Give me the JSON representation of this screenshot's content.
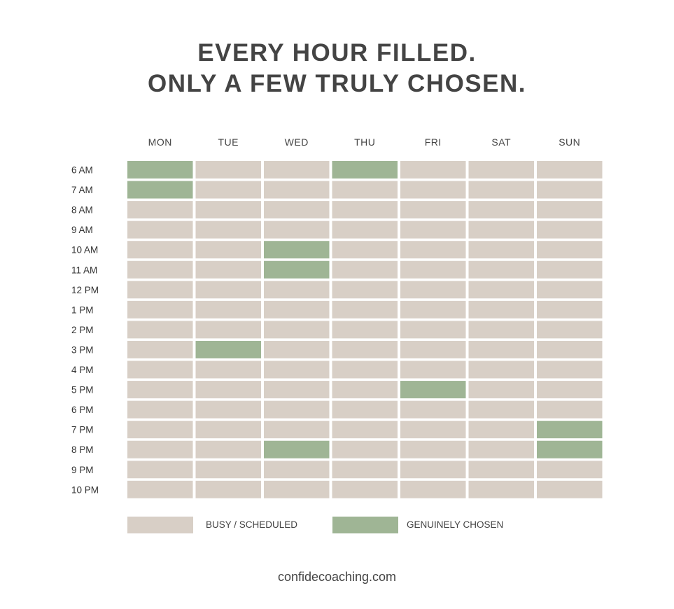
{
  "title_line1": "EVERY HOUR FILLED.",
  "title_line2": "ONLY A FEW TRULY CHOSEN.",
  "colors": {
    "busy": "#d8cfc6",
    "chosen": "#9fb595",
    "text": "#444444"
  },
  "chart_data": {
    "type": "heatmap",
    "days": [
      "MON",
      "TUE",
      "WED",
      "THU",
      "FRI",
      "SAT",
      "SUN"
    ],
    "hours": [
      "6 AM",
      "7 AM",
      "8 AM",
      "9 AM",
      "10 AM",
      "11 AM",
      "12 PM",
      "1 PM",
      "2 PM",
      "3 PM",
      "4 PM",
      "5 PM",
      "6 PM",
      "7 PM",
      "8 PM",
      "9 PM",
      "10 PM"
    ],
    "values": [
      [
        1,
        0,
        0,
        1,
        0,
        0,
        0
      ],
      [
        1,
        0,
        0,
        0,
        0,
        0,
        0
      ],
      [
        0,
        0,
        0,
        0,
        0,
        0,
        0
      ],
      [
        0,
        0,
        0,
        0,
        0,
        0,
        0
      ],
      [
        0,
        0,
        1,
        0,
        0,
        0,
        0
      ],
      [
        0,
        0,
        1,
        0,
        0,
        0,
        0
      ],
      [
        0,
        0,
        0,
        0,
        0,
        0,
        0
      ],
      [
        0,
        0,
        0,
        0,
        0,
        0,
        0
      ],
      [
        0,
        0,
        0,
        0,
        0,
        0,
        0
      ],
      [
        0,
        1,
        0,
        0,
        0,
        0,
        0
      ],
      [
        0,
        0,
        0,
        0,
        0,
        0,
        0
      ],
      [
        0,
        0,
        0,
        0,
        1,
        0,
        0
      ],
      [
        0,
        0,
        0,
        0,
        0,
        0,
        0
      ],
      [
        0,
        0,
        0,
        0,
        0,
        0,
        1
      ],
      [
        0,
        0,
        1,
        0,
        0,
        0,
        1
      ],
      [
        0,
        0,
        0,
        0,
        0,
        0,
        0
      ],
      [
        0,
        0,
        0,
        0,
        0,
        0,
        0
      ]
    ],
    "legend": [
      {
        "label": "BUSY / SCHEDULED",
        "value": 0
      },
      {
        "label": "GENUINELY CHOSEN",
        "value": 1
      }
    ]
  },
  "footer": "confidecoaching.com"
}
